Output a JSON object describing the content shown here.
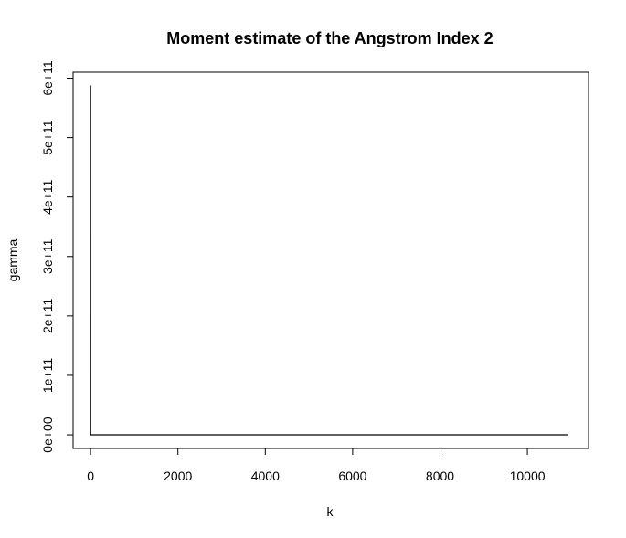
{
  "chart_data": {
    "type": "line",
    "title": "Moment estimate of the Angstrom Index 2",
    "xlabel": "k",
    "ylabel": "gamma",
    "xlim": [
      -400,
      11400
    ],
    "ylim": [
      -23000000000,
      610000000000
    ],
    "x_ticks": [
      0,
      2000,
      4000,
      6000,
      8000,
      10000
    ],
    "x_tick_labels": [
      "0",
      "2000",
      "4000",
      "6000",
      "8000",
      "10000"
    ],
    "y_ticks": [
      0,
      100000000000,
      200000000000,
      300000000000,
      400000000000,
      500000000000,
      600000000000
    ],
    "y_tick_labels": [
      "0e+00",
      "1e+11",
      "2e+11",
      "3e+11",
      "4e+11",
      "5e+11",
      "6e+11"
    ],
    "grid": false,
    "series": [
      {
        "name": "gamma",
        "color": "#000000",
        "x": [
          1,
          2,
          3,
          10,
          100,
          1000,
          5000,
          10940
        ],
        "values": [
          588000000000,
          0,
          0,
          0,
          0,
          0,
          0,
          0
        ]
      }
    ]
  }
}
